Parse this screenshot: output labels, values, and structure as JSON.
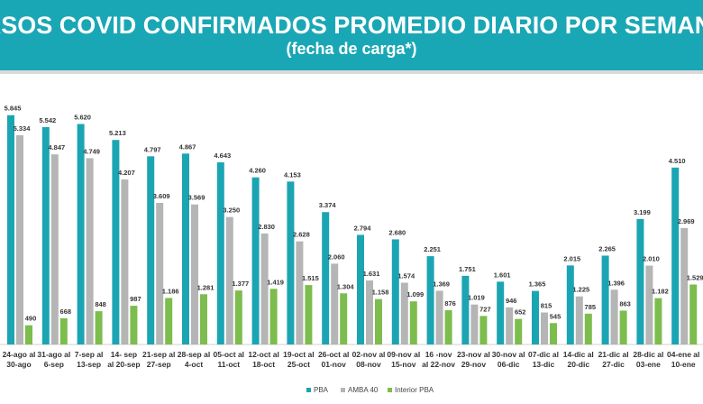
{
  "chart_data": {
    "type": "bar",
    "title": "ASOS COVID CONFIRMADOS PROMEDIO DIARIO POR SEMAN",
    "subtitle": "(fecha de carga*)",
    "categories": [
      "24-ago al 30-ago",
      "31-ago al 6-sep",
      "7-sep al 13-sep",
      "14- sep al 20-sep",
      "21-sep al 27-sep",
      "28-sep al 4-oct",
      "05-oct al 11-oct",
      "12-oct al 18-oct",
      "19-oct al 25-oct",
      "26-oct al 01-nov",
      "02-nov al 08-nov",
      "09-nov al 15-nov",
      "16 -nov al 22-nov",
      "23-nov al 29-nov",
      "30-nov al 06-dic",
      "07-dic al 13-dic",
      "14-dic al 20-dic",
      "21-dic al 27-dic",
      "28-dic al 03-ene",
      "04-ene al 10-ene"
    ],
    "series": [
      {
        "name": "PBA",
        "color": "#1ba5b3",
        "values": [
          5845,
          5542,
          5620,
          5213,
          4797,
          4867,
          4643,
          4260,
          4153,
          3374,
          2794,
          2680,
          2251,
          1751,
          1601,
          1365,
          2015,
          2265,
          3199,
          4510
        ],
        "value_labels": [
          "5.845",
          "5.542",
          "5.620",
          "5.213",
          "4.797",
          "4.867",
          "4.643",
          "4.260",
          "4.153",
          "3.374",
          "2.794",
          "2.680",
          "2.251",
          "1.751",
          "1.601",
          "1.365",
          "2.015",
          "2.265",
          "3.199",
          "4.510"
        ]
      },
      {
        "name": "AMBA 40",
        "color": "#b5b5b5",
        "values": [
          5334,
          4847,
          4749,
          4207,
          3609,
          3569,
          3250,
          2830,
          2628,
          2060,
          1631,
          1574,
          1369,
          1019,
          946,
          815,
          1225,
          1396,
          2010,
          2969
        ],
        "value_labels": [
          "5.334",
          "4.847",
          "4.749",
          "4.207",
          "3.609",
          "3.569",
          "3.250",
          "2.830",
          "2.628",
          "2.060",
          "1.631",
          "1.574",
          "1.369",
          "1.019",
          "946",
          "815",
          "1.225",
          "1.396",
          "2.010",
          "2.969"
        ]
      },
      {
        "name": "Interior PBA",
        "color": "#7cbd4e",
        "values": [
          490,
          668,
          848,
          987,
          1186,
          1281,
          1377,
          1419,
          1515,
          1304,
          1158,
          1099,
          876,
          727,
          652,
          545,
          785,
          863,
          1182,
          1529
        ],
        "value_labels": [
          "490",
          "668",
          "848",
          "987",
          "1.186",
          "1.281",
          "1.377",
          "1.419",
          "1.515",
          "1.304",
          "1.158",
          "1.099",
          "876",
          "727",
          "652",
          "545",
          "785",
          "863",
          "1.182",
          "1.529"
        ]
      }
    ]
  }
}
